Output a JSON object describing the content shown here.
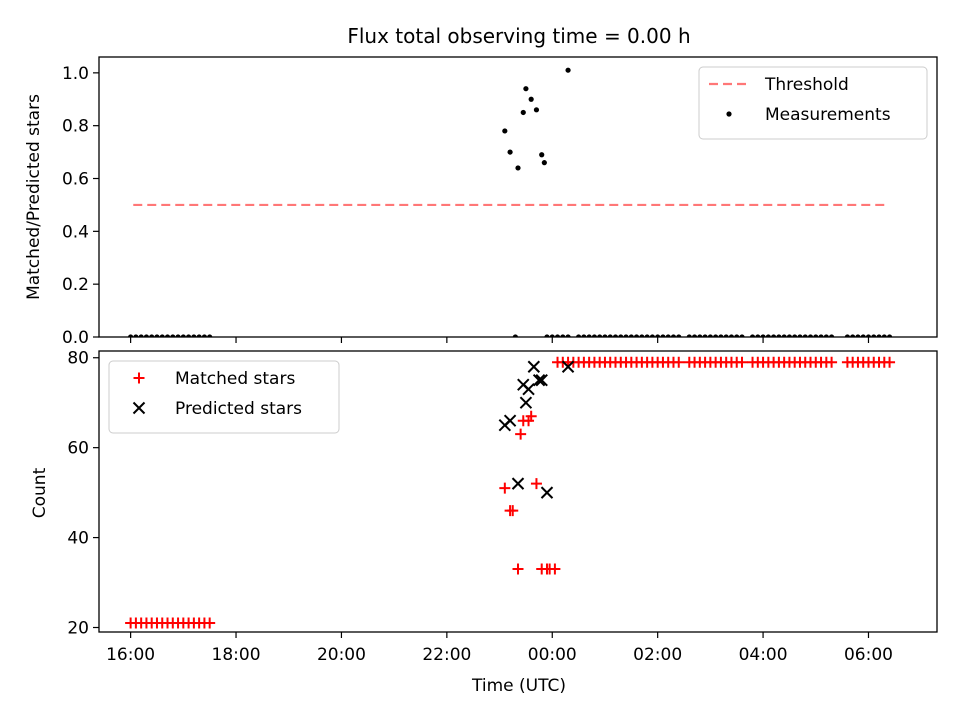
{
  "chart_data": [
    {
      "type": "scatter",
      "title": "Flux total observing time = 0.00 h",
      "xlabel": "",
      "ylabel": "Matched/Predicted stars",
      "xlim": [
        -0.6,
        15.3
      ],
      "ylim": [
        0.0,
        1.06
      ],
      "xticks": [
        0,
        2,
        4,
        6,
        8,
        10,
        12,
        14
      ],
      "yticks": [
        0.0,
        0.2,
        0.4,
        0.6,
        0.8,
        1.0
      ],
      "ytick_labels": [
        "0.0",
        "0.2",
        "0.4",
        "0.6",
        "0.8",
        "1.0"
      ],
      "legend_position": "upper right",
      "series": [
        {
          "name": "Threshold",
          "kind": "line",
          "style": "dashed",
          "color": "#ff7777",
          "x": [
            0.05,
            14.3
          ],
          "y": [
            0.5,
            0.5
          ]
        },
        {
          "name": "Measurements",
          "kind": "dot",
          "color": "#000000",
          "x": [
            0.0,
            0.1,
            0.2,
            0.3,
            0.4,
            0.5,
            0.6,
            0.7,
            0.8,
            0.9,
            1.0,
            1.1,
            1.2,
            1.3,
            1.4,
            1.5,
            7.3,
            7.1,
            7.2,
            7.35,
            7.45,
            7.5,
            7.6,
            7.7,
            7.8,
            7.85,
            7.9,
            8.3,
            8.0,
            8.1,
            8.2,
            8.3,
            8.5,
            8.6,
            8.7,
            8.8,
            8.9,
            9.0,
            9.1,
            9.2,
            9.3,
            9.4,
            9.5,
            9.6,
            9.7,
            9.8,
            9.9,
            10.0,
            10.1,
            10.2,
            10.3,
            10.4,
            10.6,
            10.7,
            10.8,
            10.9,
            11.0,
            11.1,
            11.2,
            11.3,
            11.4,
            11.5,
            11.6,
            11.8,
            11.9,
            12.0,
            12.1,
            12.2,
            12.3,
            12.4,
            12.5,
            12.6,
            12.7,
            12.8,
            12.9,
            13.0,
            13.1,
            13.2,
            13.3,
            13.6,
            13.7,
            13.8,
            13.9,
            14.0,
            14.1,
            14.2,
            14.3,
            14.4
          ],
          "y": [
            0,
            0,
            0,
            0,
            0,
            0,
            0,
            0,
            0,
            0,
            0,
            0,
            0,
            0,
            0,
            0,
            0,
            0.78,
            0.7,
            0.64,
            0.85,
            0.94,
            0.9,
            0.86,
            0.69,
            0.66,
            0,
            1.01,
            0,
            0,
            0,
            0,
            0,
            0,
            0,
            0,
            0,
            0,
            0,
            0,
            0,
            0,
            0,
            0,
            0,
            0,
            0,
            0,
            0,
            0,
            0,
            0,
            0,
            0,
            0,
            0,
            0,
            0,
            0,
            0,
            0,
            0,
            0,
            0,
            0,
            0,
            0,
            0,
            0,
            0,
            0,
            0,
            0,
            0,
            0,
            0,
            0,
            0,
            0,
            0,
            0,
            0,
            0,
            0,
            0,
            0,
            0,
            0
          ]
        }
      ]
    },
    {
      "type": "scatter",
      "title": "",
      "xlabel": "Time (UTC)",
      "ylabel": "Count",
      "xlim": [
        -0.6,
        15.3
      ],
      "ylim": [
        19,
        81.5
      ],
      "xticks": [
        0,
        2,
        4,
        6,
        8,
        10,
        12,
        14
      ],
      "xtick_labels": [
        "16:00",
        "18:00",
        "20:00",
        "22:00",
        "00:00",
        "02:00",
        "04:00",
        "06:00"
      ],
      "yticks": [
        20,
        40,
        60,
        80
      ],
      "ytick_labels": [
        "20",
        "40",
        "60",
        "80"
      ],
      "legend_position": "upper left",
      "series": [
        {
          "name": "Matched stars",
          "kind": "plus",
          "color": "#ff0000",
          "x": [
            0.0,
            0.1,
            0.2,
            0.3,
            0.4,
            0.5,
            0.6,
            0.7,
            0.8,
            0.9,
            1.0,
            1.1,
            1.2,
            1.3,
            1.4,
            1.5,
            7.1,
            7.2,
            7.25,
            7.35,
            7.4,
            7.45,
            7.55,
            7.6,
            7.7,
            7.8,
            7.9,
            7.95,
            8.05,
            8.1,
            8.2,
            8.3,
            8.4,
            8.5,
            8.6,
            8.7,
            8.8,
            8.9,
            9.0,
            9.1,
            9.2,
            9.3,
            9.4,
            9.5,
            9.6,
            9.7,
            9.8,
            9.9,
            10.0,
            10.1,
            10.2,
            10.3,
            10.4,
            10.6,
            10.7,
            10.8,
            10.9,
            11.0,
            11.1,
            11.2,
            11.3,
            11.4,
            11.5,
            11.6,
            11.8,
            11.9,
            12.0,
            12.1,
            12.2,
            12.3,
            12.4,
            12.5,
            12.6,
            12.7,
            12.8,
            12.9,
            13.0,
            13.1,
            13.2,
            13.3,
            13.6,
            13.7,
            13.8,
            13.9,
            14.0,
            14.1,
            14.2,
            14.3,
            14.4
          ],
          "y": [
            21,
            21,
            21,
            21,
            21,
            21,
            21,
            21,
            21,
            21,
            21,
            21,
            21,
            21,
            21,
            21,
            51,
            46,
            46,
            33,
            63,
            66,
            66,
            67,
            52,
            33,
            33,
            33,
            33,
            79,
            79,
            79,
            79,
            79,
            79,
            79,
            79,
            79,
            79,
            79,
            79,
            79,
            79,
            79,
            79,
            79,
            79,
            79,
            79,
            79,
            79,
            79,
            79,
            79,
            79,
            79,
            79,
            79,
            79,
            79,
            79,
            79,
            79,
            79,
            79,
            79,
            79,
            79,
            79,
            79,
            79,
            79,
            79,
            79,
            79,
            79,
            79,
            79,
            79,
            79,
            79,
            79,
            79,
            79,
            79,
            79,
            79,
            79,
            79
          ]
        },
        {
          "name": "Predicted stars",
          "kind": "cross",
          "color": "#000000",
          "x": [
            7.1,
            7.2,
            7.35,
            7.45,
            7.5,
            7.55,
            7.65,
            7.75,
            7.8,
            7.9,
            8.3
          ],
          "y": [
            65,
            66,
            52,
            74,
            70,
            73,
            78,
            75,
            75,
            50,
            78
          ]
        }
      ]
    }
  ]
}
